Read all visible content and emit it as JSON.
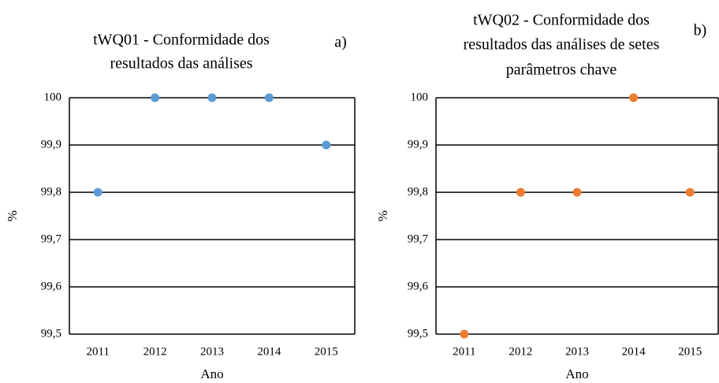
{
  "chart_data": [
    {
      "type": "scatter",
      "title": [
        "tWQ01 - Conformidade dos",
        "resultados das análises"
      ],
      "annotation": "a)",
      "xlabel": "Ano",
      "ylabel": "%",
      "categories": [
        "2011",
        "2012",
        "2013",
        "2014",
        "2015"
      ],
      "values": [
        99.8,
        100,
        100,
        100,
        99.9
      ],
      "color": "#5b9bd5",
      "ylim": [
        99.5,
        100
      ],
      "yticks": [
        {
          "value": 99.5,
          "label": "99,5"
        },
        {
          "value": 99.6,
          "label": "99,6"
        },
        {
          "value": 99.7,
          "label": "99,7"
        },
        {
          "value": 99.8,
          "label": "99,8"
        },
        {
          "value": 99.9,
          "label": "99,9"
        },
        100
      ],
      "grid": true
    },
    {
      "type": "scatter",
      "title": [
        "tWQ02 - Conformidade dos",
        "resultados das análises de setes",
        "parâmetros chave"
      ],
      "annotation": "b)",
      "xlabel": "Ano",
      "ylabel": "%",
      "categories": [
        "2011",
        "2012",
        "2013",
        "2014",
        "2015"
      ],
      "values": [
        99.5,
        99.8,
        99.8,
        100,
        99.8
      ],
      "color": "#ed7d31",
      "ylim": [
        99.5,
        100
      ],
      "yticks": [
        {
          "value": 99.5,
          "label": "99,5"
        },
        {
          "value": 99.6,
          "label": "99,6"
        },
        {
          "value": 99.7,
          "label": "99,7"
        },
        {
          "value": 99.8,
          "label": "99,8"
        },
        {
          "value": 99.9,
          "label": "99,9"
        },
        100
      ],
      "grid": true
    }
  ]
}
